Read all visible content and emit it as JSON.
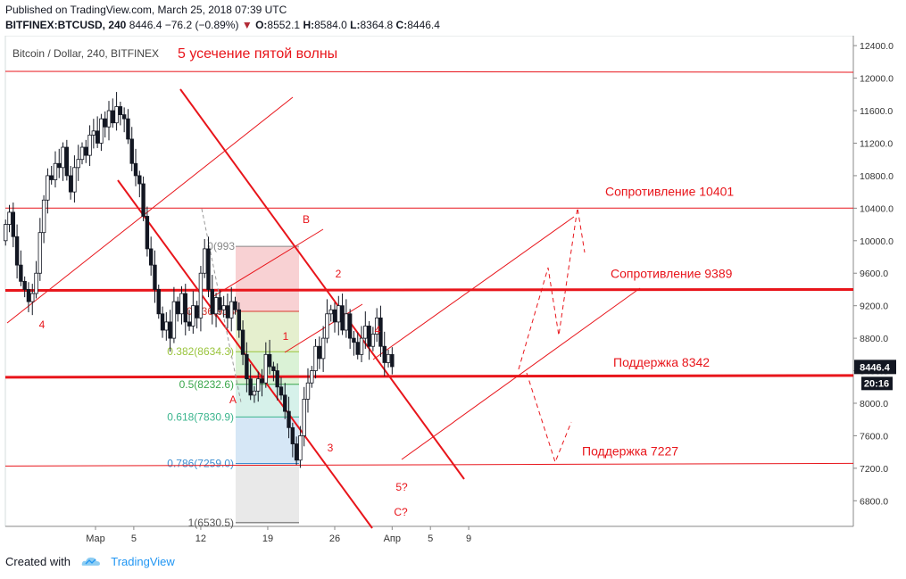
{
  "header": {
    "published": "Published on TradingView.com, March 25, 2018 07:39 UTC",
    "symbol": "BITFINEX:BTCUSD, 240",
    "last": "8446.4",
    "change": "−76.2 (−0.89%)",
    "o_label": "O:",
    "o": "8552.1",
    "h_label": "H:",
    "h": "8584.0",
    "l_label": "L:",
    "l": "8364.8",
    "c_label": "C:",
    "c": "8446.4"
  },
  "chart_data": {
    "type": "candlestick",
    "pair_label": "Bitcoin / Dollar, 240, BITFINEX",
    "idea_title": "5 усечение пятой волны",
    "y_ticks": [
      "12400.0",
      "12000.0",
      "11600.0",
      "11200.0",
      "10800.0",
      "10400.0",
      "10000.0",
      "9600.0",
      "9200.0",
      "8800.0",
      "8400.0",
      "8000.0",
      "7600.0",
      "7200.0",
      "6800.0"
    ],
    "x_ticks": [
      "Мар",
      "5",
      "12",
      "19",
      "26",
      "Апр",
      "5",
      "9"
    ],
    "ylim": [
      6300,
      12600
    ],
    "price_badge": "8446.4",
    "time_badge": "20:16",
    "levels": [
      {
        "label": "Сопротивление 10401",
        "value": 10401
      },
      {
        "label": "Сопротивление 9389",
        "value": 9389
      },
      {
        "label": "Поддержка 8342",
        "value": 8342
      },
      {
        "label": "Поддержка 7227",
        "value": 7227
      }
    ],
    "fib": [
      {
        "label": "0(993",
        "value": 9930
      },
      {
        "label": "0.236(913",
        "value": 9130
      },
      {
        "label": "0.382(8634.3)",
        "value": 8634.3
      },
      {
        "label": "0.5(8232.6)",
        "value": 8232.6
      },
      {
        "label": "0.618(7830.9)",
        "value": 7830.9
      },
      {
        "label": "0.786(7259.0)",
        "value": 7259.0
      },
      {
        "label": "1(6530.5)",
        "value": 6530.5
      }
    ],
    "wave_labels": [
      "4",
      "B",
      "2",
      "A",
      "1",
      "3",
      "4",
      "5?",
      "C?"
    ]
  },
  "footer": {
    "created": "Created with",
    "brand": "TradingView"
  },
  "colors": {
    "red": "#e8151b",
    "up": "#ffffff",
    "down": "#131722"
  }
}
